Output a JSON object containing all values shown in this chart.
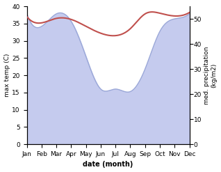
{
  "months": [
    "Jan",
    "Feb",
    "Mar",
    "Apr",
    "May",
    "Jun",
    "Jul",
    "Aug",
    "Sep",
    "Oct",
    "Nov",
    "Dec"
  ],
  "max_temp": [
    37.0,
    35.2,
    36.5,
    36.2,
    34.2,
    32.2,
    31.5,
    33.5,
    37.8,
    38.0,
    37.2,
    38.2
  ],
  "precipitation": [
    52,
    47,
    52,
    49,
    35,
    22,
    22,
    21,
    30,
    45,
    50,
    52
  ],
  "temp_color": "#c0504d",
  "precip_edge_color": "#9ba8d8",
  "precip_fill_color": "#c5cbee",
  "ylabel_left": "max temp (C)",
  "ylabel_right": "med. precipitation\n(kg/m2)",
  "xlabel": "date (month)",
  "ylim_left": [
    0,
    40
  ],
  "ylim_right": [
    0,
    55
  ],
  "background_color": "#ffffff",
  "temp_linewidth": 1.5,
  "precip_linewidth": 1.0,
  "title_fontsize": 7,
  "axis_fontsize": 7,
  "tick_fontsize": 6.5
}
